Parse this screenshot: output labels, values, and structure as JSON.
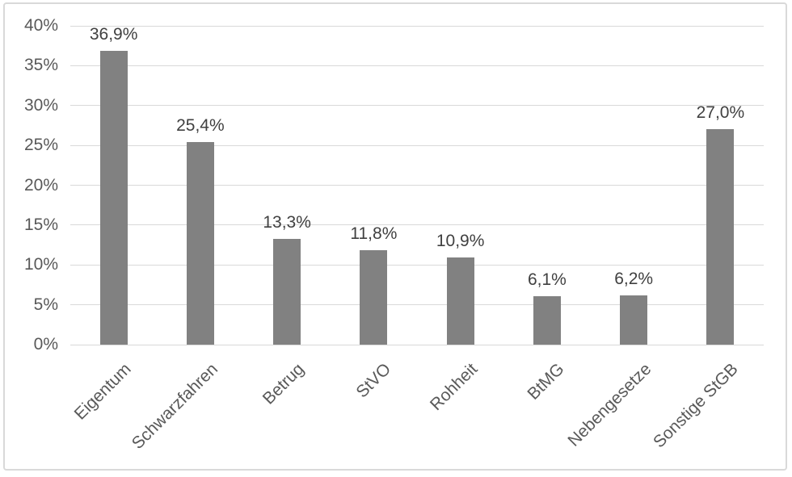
{
  "chart_data": {
    "type": "bar",
    "title": "",
    "xlabel": "",
    "ylabel": "",
    "categories": [
      "Eigentum",
      "Schwarzfahren",
      "Betrug",
      "StVO",
      "Rohheit",
      "BtMG",
      "Nebengesetze",
      "Sonstige StGB"
    ],
    "values": [
      36.9,
      25.4,
      13.3,
      11.8,
      10.9,
      6.1,
      6.2,
      27.0
    ],
    "data_labels": [
      "36,9%",
      "25,4%",
      "13,3%",
      "11,8%",
      "10,9%",
      "6,1%",
      "6,2%",
      "27,0%"
    ],
    "ylim": [
      0,
      40
    ],
    "ytick_step": 5,
    "ytick_labels": [
      "0%",
      "5%",
      "10%",
      "15%",
      "20%",
      "25%",
      "30%",
      "35%",
      "40%"
    ],
    "grid": true,
    "legend": false,
    "colors": {
      "bar": "#818181",
      "gridline": "#d9d9d9",
      "chart_border": "#d9d9d9",
      "axis_text": "#595959",
      "data_label_text": "#404040",
      "background": "#ffffff"
    }
  }
}
